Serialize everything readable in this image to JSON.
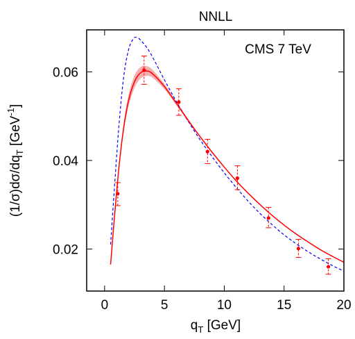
{
  "chart_data": {
    "type": "line",
    "title": "NNLL",
    "annotation": "CMS 7 TeV",
    "xlabel": {
      "main": "q",
      "sub": "T",
      "rest": " [GeV]"
    },
    "ylabel": {
      "p1": "(1/σ)dσ/dq",
      "sub1": "T",
      "p2": " [GeV",
      "sup": "-1",
      "p3": "]"
    },
    "xlim": [
      -1.5,
      20
    ],
    "ylim": [
      0.0105,
      0.0695
    ],
    "xticks": [
      0,
      5,
      10,
      15,
      20
    ],
    "xtick_labels": [
      "0",
      "5",
      "10",
      "15",
      "20"
    ],
    "yticks": [
      0.02,
      0.04,
      0.06
    ],
    "ytick_labels": [
      "0.02",
      "0.04",
      "0.06"
    ],
    "colors": {
      "nnll": "#ff0000",
      "band": "#f4a0a0",
      "dashed": "#0000ff",
      "data": "#ff0000"
    },
    "series": [
      {
        "style": "solid-red-with-band",
        "x": [
          0.5,
          0.8,
          1.2,
          1.6,
          2.0,
          2.5,
          3.0,
          3.5,
          4.0,
          5.0,
          6.0,
          7.0,
          8.0,
          9.0,
          10.0,
          11.0,
          12.0,
          13.0,
          14.0,
          15.0,
          16.0,
          17.0,
          18.0,
          19.0,
          20.0
        ],
        "y": [
          0.0165,
          0.0265,
          0.0385,
          0.0475,
          0.0535,
          0.0578,
          0.0598,
          0.0602,
          0.0596,
          0.0567,
          0.0529,
          0.049,
          0.0453,
          0.0418,
          0.0385,
          0.0354,
          0.0326,
          0.03,
          0.0276,
          0.0254,
          0.0234,
          0.0216,
          0.0199,
          0.0184,
          0.017
        ],
        "band": [
          0.0,
          0.0,
          0.0006,
          0.001,
          0.0013,
          0.0014,
          0.0013,
          0.0011,
          0.0009,
          0.0006,
          0.0004,
          0.0003,
          0.0002,
          0.0002,
          0.0001,
          0.0001,
          0.0001,
          0.0001,
          0.0001,
          0.0001,
          0.0001,
          0.0001,
          0.0001,
          0.0001,
          0.0001
        ]
      },
      {
        "style": "dashed-blue",
        "x": [
          0.5,
          0.8,
          1.2,
          1.6,
          2.0,
          2.4,
          2.7,
          3.0,
          3.5,
          4.0,
          5.0,
          6.0,
          7.0,
          8.0,
          9.0,
          10.0,
          11.0,
          12.0,
          13.0,
          14.0,
          15.0,
          16.0,
          17.0,
          18.0,
          19.0,
          20.0
        ],
        "y": [
          0.021,
          0.033,
          0.048,
          0.059,
          0.065,
          0.0675,
          0.0678,
          0.0672,
          0.0656,
          0.0634,
          0.0582,
          0.0533,
          0.0488,
          0.0446,
          0.0408,
          0.0372,
          0.0339,
          0.0308,
          0.028,
          0.0255,
          0.0232,
          0.0212,
          0.0194,
          0.0178,
          0.0163,
          0.015
        ]
      }
    ],
    "points": [
      {
        "x": 1.1,
        "y": 0.0325,
        "ylo": 0.0298,
        "yhi": 0.035
      },
      {
        "x": 3.3,
        "y": 0.0604,
        "ylo": 0.0572,
        "yhi": 0.0636
      },
      {
        "x": 6.2,
        "y": 0.0532,
        "ylo": 0.0502,
        "yhi": 0.0562
      },
      {
        "x": 8.6,
        "y": 0.042,
        "ylo": 0.0393,
        "yhi": 0.0448
      },
      {
        "x": 11.1,
        "y": 0.036,
        "ylo": 0.0334,
        "yhi": 0.0388
      },
      {
        "x": 13.7,
        "y": 0.027,
        "ylo": 0.0248,
        "yhi": 0.0294
      },
      {
        "x": 16.2,
        "y": 0.0201,
        "ylo": 0.0181,
        "yhi": 0.0222
      },
      {
        "x": 18.7,
        "y": 0.016,
        "ylo": 0.0143,
        "yhi": 0.0178
      }
    ]
  }
}
